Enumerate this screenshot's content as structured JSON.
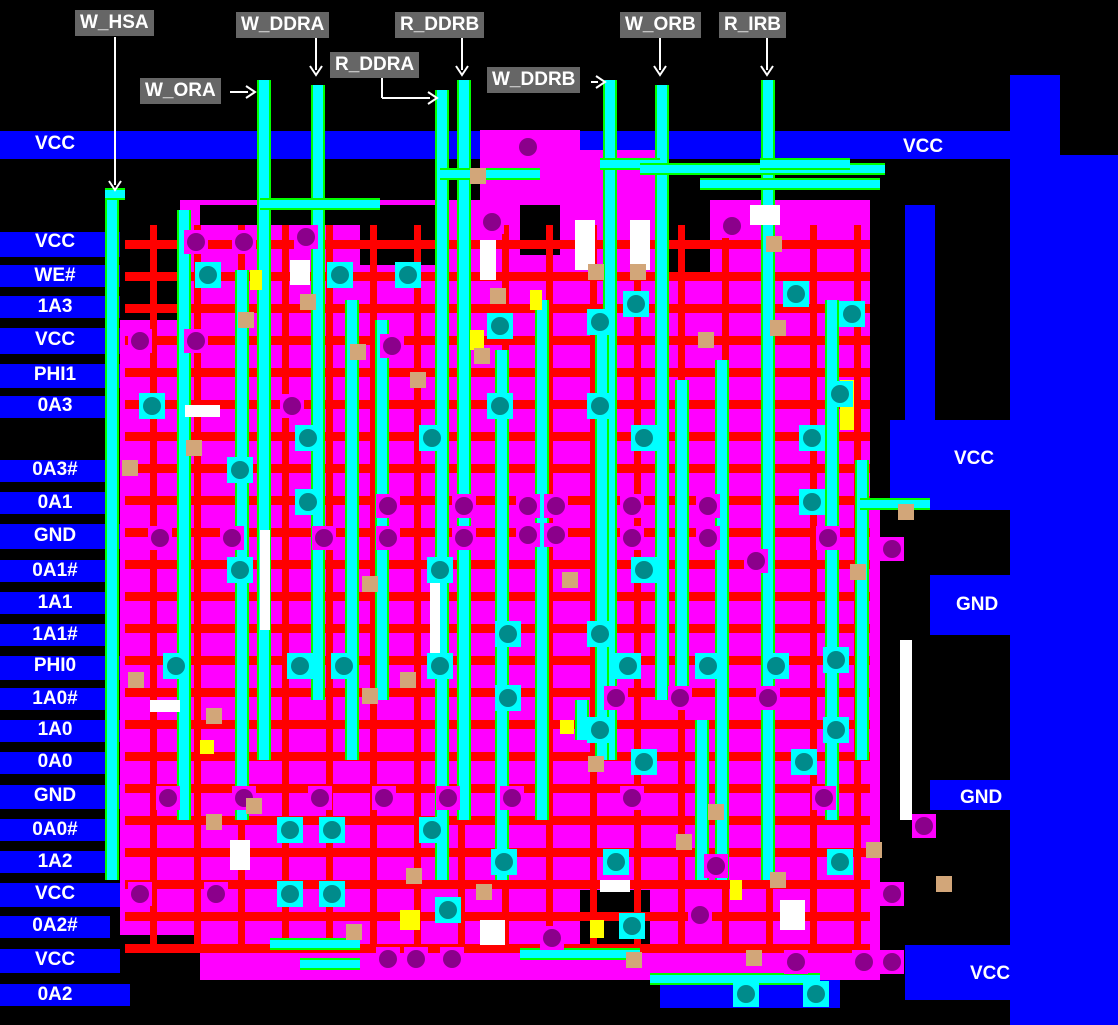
{
  "left_labels": [
    "VCC",
    "VCC",
    "WE#",
    "1A3",
    "VCC",
    "PHI1",
    "0A3",
    "0A3#",
    "0A1",
    "GND",
    "0A1#",
    "1A1",
    "1A1#",
    "PHI0",
    "1A0#",
    "1A0",
    "0A0",
    "GND",
    "0A0#",
    "1A2",
    "VCC",
    "0A2#",
    "VCC",
    "0A2"
  ],
  "right_labels": [
    "VCC",
    "VCC",
    "GND",
    "GND",
    "VCC"
  ],
  "top_labels": [
    "W_HSA",
    "W_DDRA",
    "R_DDRB",
    "W_ORB",
    "R_IRB",
    "W_ORA",
    "R_DDRA",
    "W_DDRB"
  ],
  "colors": {
    "background": "#000000",
    "metal": "#0000ff",
    "diffusion": "#ff00ff",
    "polysilicon": "#ff0000",
    "metal2": "#00ffff",
    "poly_edge": "#00ff00",
    "overlap": "#ffff00",
    "highlight": "#ffffff",
    "contact": "#8b008b",
    "via": "#008b8b",
    "buried_contact": "#d2a679",
    "label_box": "#666666"
  }
}
